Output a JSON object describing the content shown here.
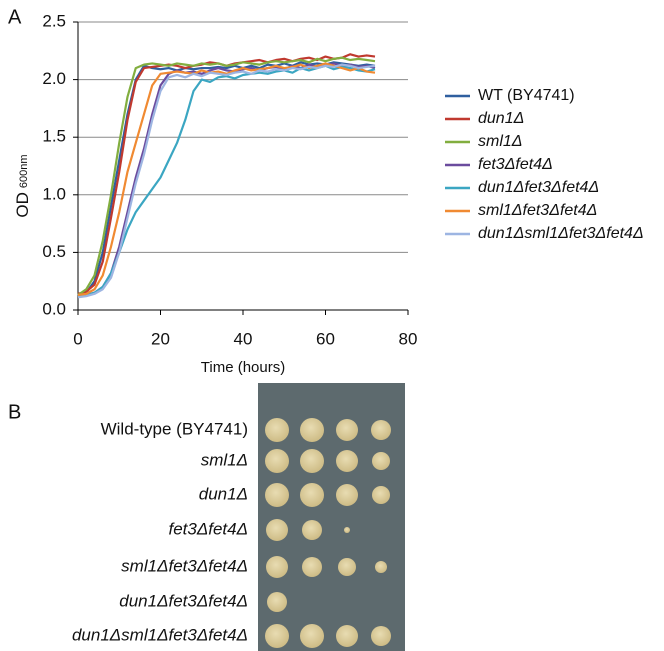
{
  "panel_a_label": "A",
  "chart_data": {
    "type": "line",
    "ylabel": "OD",
    "ylabel_sub": "600nm",
    "xlabel": "Time (hours)",
    "x": [
      0,
      2,
      4,
      6,
      8,
      10,
      12,
      14,
      16,
      18,
      20,
      22,
      24,
      26,
      28,
      30,
      32,
      34,
      36,
      38,
      40,
      42,
      44,
      46,
      48,
      50,
      52,
      54,
      56,
      58,
      60,
      62,
      64,
      66,
      68,
      70,
      72
    ],
    "xlim": [
      0,
      80
    ],
    "xticks": [
      0,
      20,
      40,
      60,
      80
    ],
    "ylim": [
      0,
      2.5
    ],
    "yticks": [
      {
        "value": 0,
        "label": "0.0"
      },
      0.5,
      {
        "value": 1,
        "label": "1.0"
      },
      1.5,
      {
        "value": 2,
        "label": "2.0"
      },
      2.5
    ],
    "grid": true,
    "legend": "right",
    "series": [
      {
        "name": "WT (BY4741)",
        "color": "#2f5f9f",
        "values": [
          0.13,
          0.15,
          0.25,
          0.5,
          0.9,
          1.3,
          1.7,
          2.0,
          2.12,
          2.1,
          2.09,
          2.1,
          2.08,
          2.1,
          2.09,
          2.1,
          2.1,
          2.11,
          2.1,
          2.12,
          2.1,
          2.12,
          2.1,
          2.13,
          2.12,
          2.14,
          2.12,
          2.15,
          2.13,
          2.14,
          2.13,
          2.15,
          2.14,
          2.13,
          2.12,
          2.13,
          2.12
        ]
      },
      {
        "name": "dun1Δ",
        "color": "#c0392f",
        "values": [
          0.14,
          0.16,
          0.22,
          0.42,
          0.8,
          1.2,
          1.65,
          1.98,
          2.1,
          2.11,
          2.12,
          2.13,
          2.12,
          2.1,
          2.12,
          2.13,
          2.15,
          2.14,
          2.12,
          2.14,
          2.15,
          2.16,
          2.17,
          2.15,
          2.17,
          2.18,
          2.16,
          2.18,
          2.19,
          2.17,
          2.2,
          2.18,
          2.19,
          2.22,
          2.2,
          2.21,
          2.2
        ]
      },
      {
        "name": "sml1Δ",
        "color": "#82ae3f",
        "values": [
          0.13,
          0.18,
          0.3,
          0.6,
          1.0,
          1.45,
          1.85,
          2.1,
          2.13,
          2.14,
          2.13,
          2.12,
          2.14,
          2.13,
          2.12,
          2.14,
          2.13,
          2.14,
          2.12,
          2.13,
          2.15,
          2.14,
          2.13,
          2.15,
          2.16,
          2.15,
          2.16,
          2.17,
          2.15,
          2.18,
          2.16,
          2.18,
          2.19,
          2.17,
          2.18,
          2.17,
          2.16
        ]
      },
      {
        "name": "fet3Δfet4Δ",
        "color": "#6b4c9e",
        "values": [
          0.12,
          0.13,
          0.15,
          0.2,
          0.32,
          0.55,
          0.85,
          1.15,
          1.4,
          1.7,
          1.95,
          2.05,
          2.08,
          2.06,
          2.07,
          2.05,
          2.08,
          2.1,
          2.08,
          2.07,
          2.09,
          2.1,
          2.08,
          2.1,
          2.11,
          2.09,
          2.12,
          2.1,
          2.13,
          2.11,
          2.12,
          2.14,
          2.12,
          2.13,
          2.11,
          2.12,
          2.1
        ]
      },
      {
        "name": "dun1Δfet3Δfet4Δ",
        "color": "#3ba6c2",
        "values": [
          0.12,
          0.13,
          0.15,
          0.2,
          0.32,
          0.5,
          0.7,
          0.85,
          0.95,
          1.05,
          1.15,
          1.3,
          1.45,
          1.65,
          1.9,
          2.0,
          1.98,
          2.02,
          2.03,
          2.01,
          2.04,
          2.05,
          2.06,
          2.05,
          2.07,
          2.08,
          2.06,
          2.1,
          2.08,
          2.1,
          2.12,
          2.09,
          2.11,
          2.1,
          2.08,
          2.07,
          2.09
        ]
      },
      {
        "name": "sml1Δfet3Δfet4Δ",
        "color": "#f08a32",
        "values": [
          0.13,
          0.14,
          0.18,
          0.3,
          0.55,
          0.85,
          1.2,
          1.45,
          1.7,
          1.95,
          2.05,
          2.06,
          2.07,
          2.06,
          2.05,
          2.08,
          2.06,
          2.07,
          2.05,
          2.08,
          2.1,
          2.08,
          2.09,
          2.1,
          2.12,
          2.1,
          2.11,
          2.13,
          2.1,
          2.12,
          2.14,
          2.12,
          2.1,
          2.08,
          2.1,
          2.07,
          2.06
        ]
      },
      {
        "name": "dun1Δsml1Δfet3Δfet4Δ",
        "color": "#9db5e2",
        "values": [
          0.11,
          0.12,
          0.14,
          0.18,
          0.28,
          0.5,
          0.8,
          1.1,
          1.35,
          1.65,
          1.9,
          2.02,
          2.04,
          2.02,
          2.05,
          2.03,
          2.06,
          2.05,
          2.04,
          2.06,
          2.07,
          2.05,
          2.08,
          2.07,
          2.09,
          2.08,
          2.1,
          2.09,
          2.11,
          2.1,
          2.12,
          2.11,
          2.13,
          2.12,
          2.1,
          2.11,
          2.12
        ]
      }
    ]
  },
  "panel_b": {
    "label": "B",
    "strains": [
      "Wild-type (BY4741)",
      "sml1Δ",
      "dun1Δ",
      "fet3Δfet4Δ",
      "sml1Δfet3Δfet4Δ",
      "dun1Δfet3Δfet4Δ",
      "dun1Δsml1Δfet3Δfet4Δ"
    ]
  }
}
